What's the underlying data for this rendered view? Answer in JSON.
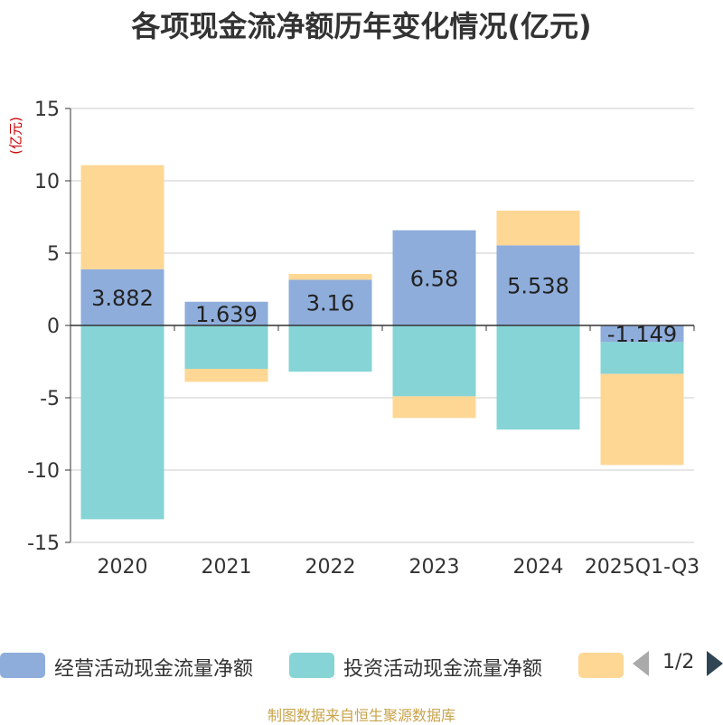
{
  "title": "各项现金流净额历年变化情况(亿元)",
  "source": "制图数据来自恒生聚源数据库",
  "pager": {
    "text": "1/2"
  },
  "chart_data": {
    "type": "bar",
    "stacked": true,
    "y_unit": "(亿元)",
    "categories": [
      "2020",
      "2021",
      "2022",
      "2023",
      "2024",
      "2025Q1-Q3"
    ],
    "ylim": [
      -15,
      15
    ],
    "yticks": [
      15,
      10,
      5,
      0,
      -5,
      -10,
      -15
    ],
    "ytick_labels": [
      "15",
      "10",
      "5",
      "0",
      "-5",
      "-10",
      "-15"
    ],
    "grid": true,
    "legend_position": "bottom",
    "series": [
      {
        "name": "经营活动现金流量净额",
        "color": "#8eaddb",
        "values": [
          3.882,
          1.639,
          3.16,
          6.58,
          5.538,
          -1.149
        ],
        "labels": [
          "3.882",
          "1.639",
          "3.16",
          "6.58",
          "5.538",
          "-1.149"
        ]
      },
      {
        "name": "投资活动现金流量净额",
        "color": "#86d4d6",
        "values": [
          -13.4,
          -3.0,
          -3.2,
          -4.9,
          -7.2,
          -2.2
        ]
      },
      {
        "name": "",
        "color": "#fed795",
        "values": [
          7.2,
          -0.9,
          0.4,
          -1.5,
          2.4,
          -6.3
        ]
      }
    ]
  }
}
